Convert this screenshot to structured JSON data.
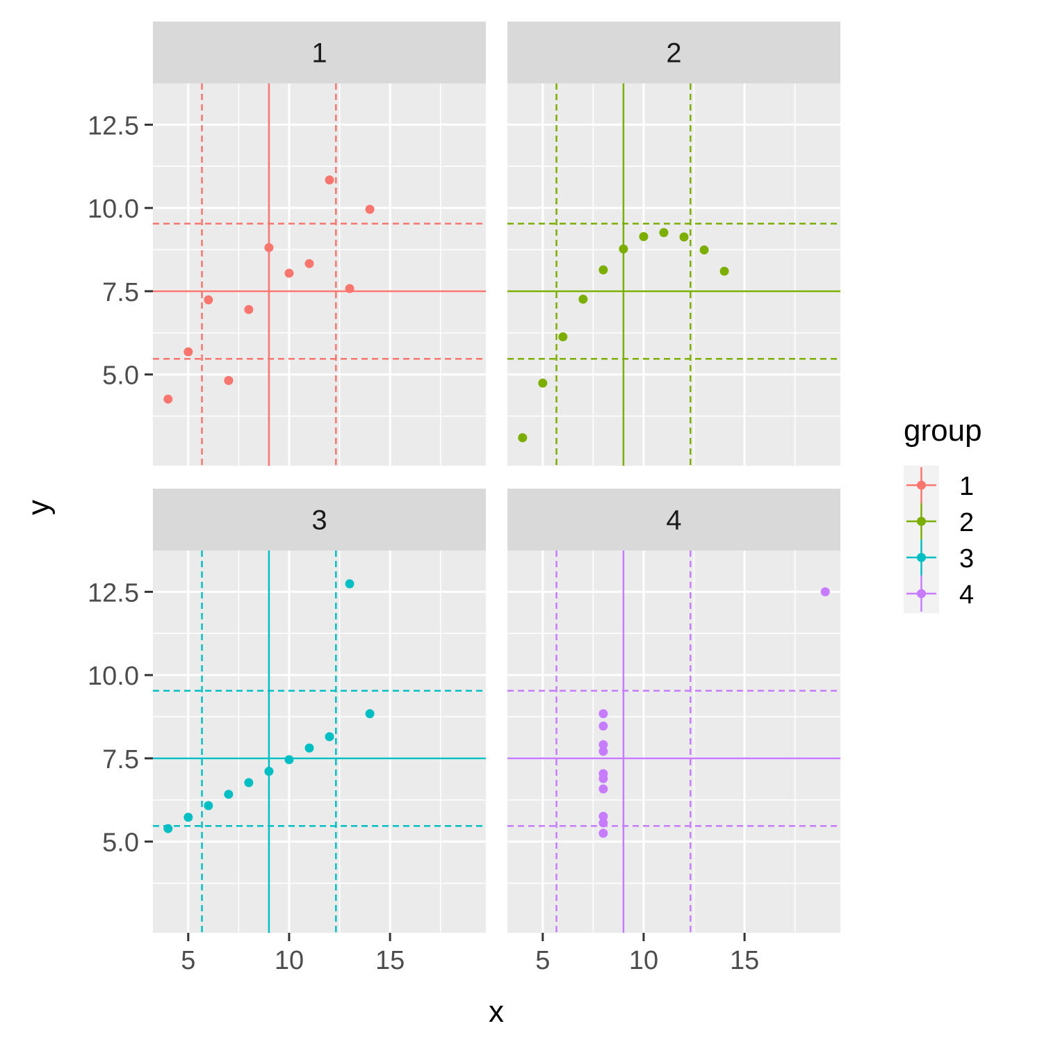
{
  "chart_data": {
    "type": "scatter",
    "xlabel": "x",
    "ylabel": "y",
    "xlim": [
      3.25,
      19.75
    ],
    "ylim": [
      2.26,
      13.74
    ],
    "x_ticks": [
      5,
      10,
      15
    ],
    "x_tick_labels": [
      "5",
      "10",
      "15"
    ],
    "y_ticks": [
      5.0,
      7.5,
      10.0,
      12.5
    ],
    "y_tick_labels": [
      "5.0",
      "7.5",
      "10.0",
      "12.5"
    ],
    "x_minor_ticks": [
      7.5,
      12.5,
      17.5
    ],
    "y_minor_ticks": [
      3.75,
      6.25,
      8.75,
      11.25
    ],
    "grid": true,
    "facet_by": "group",
    "legend": {
      "title": "group",
      "position": "right"
    },
    "reference_lines": {
      "solid_vertical_x": 9.0,
      "solid_horizontal_y": 7.5,
      "dashed_vertical_x": [
        5.68,
        12.32
      ],
      "dashed_horizontal_y": [
        5.47,
        9.53
      ]
    },
    "series": [
      {
        "name": "1",
        "color": "#F8766D",
        "x": [
          10,
          8,
          13,
          9,
          11,
          14,
          6,
          4,
          12,
          7,
          5
        ],
        "y": [
          8.04,
          6.95,
          7.58,
          8.81,
          8.33,
          9.96,
          7.24,
          4.26,
          10.84,
          4.82,
          5.68
        ]
      },
      {
        "name": "2",
        "color": "#7CAE00",
        "x": [
          10,
          8,
          13,
          9,
          11,
          14,
          6,
          4,
          12,
          7,
          5
        ],
        "y": [
          9.14,
          8.14,
          8.74,
          8.77,
          9.26,
          8.1,
          6.13,
          3.1,
          9.13,
          7.26,
          4.74
        ]
      },
      {
        "name": "3",
        "color": "#00BFC4",
        "x": [
          10,
          8,
          13,
          9,
          11,
          14,
          6,
          4,
          12,
          7,
          5
        ],
        "y": [
          7.46,
          6.77,
          12.74,
          7.11,
          7.81,
          8.84,
          6.08,
          5.39,
          8.15,
          6.42,
          5.73
        ]
      },
      {
        "name": "4",
        "color": "#C77CFF",
        "x": [
          8,
          8,
          8,
          8,
          8,
          8,
          8,
          19,
          8,
          8,
          8
        ],
        "y": [
          6.58,
          5.76,
          7.71,
          8.84,
          8.47,
          7.04,
          5.25,
          12.5,
          5.56,
          7.91,
          6.89
        ]
      }
    ]
  }
}
